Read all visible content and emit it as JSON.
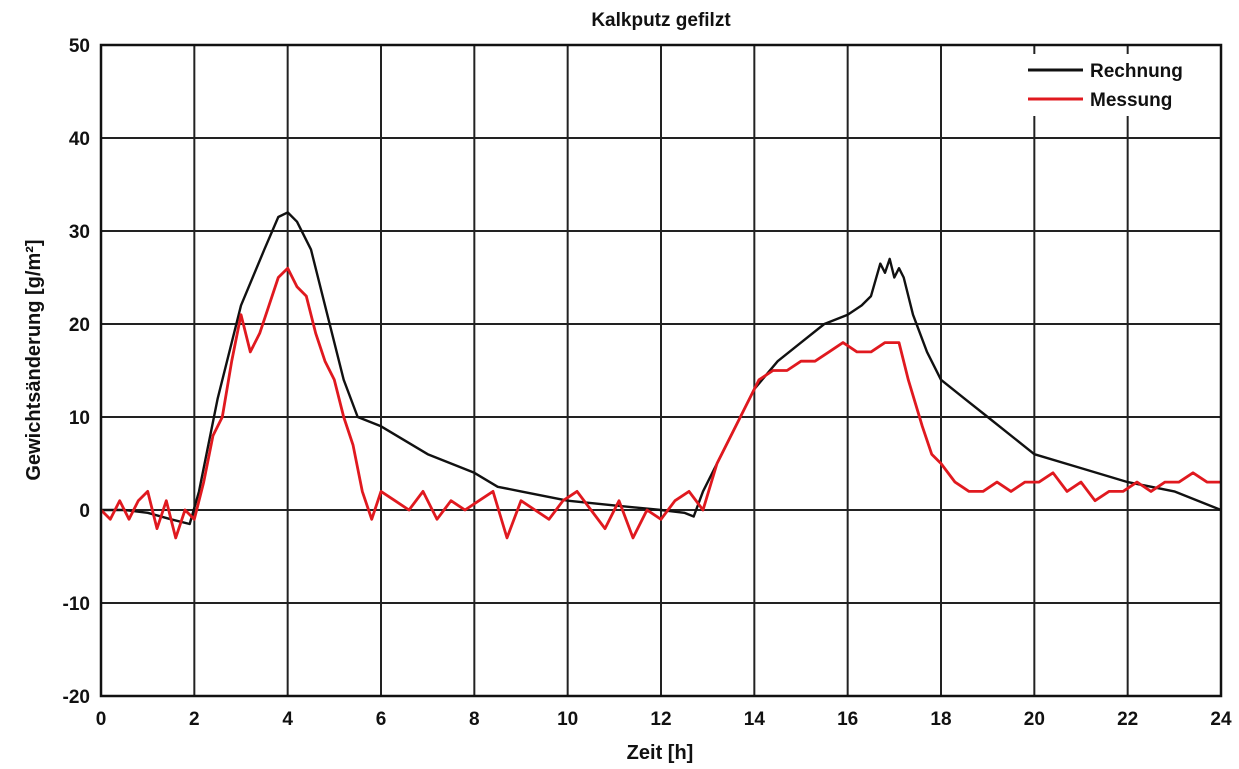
{
  "chart_data": {
    "type": "line",
    "title": "Kalkputz gefilzt",
    "xlabel": "Zeit [h]",
    "ylabel": "Gewichtsänderung [g/m²]",
    "xlim": [
      0,
      24
    ],
    "ylim": [
      -20,
      50
    ],
    "x_ticks": [
      "0",
      "2",
      "4",
      "6",
      "8",
      "10",
      "12",
      "14",
      "16",
      "18",
      "20",
      "22",
      "24"
    ],
    "y_ticks": [
      "-20",
      "-10",
      "0",
      "10",
      "20",
      "30",
      "40",
      "50"
    ],
    "grid": true,
    "legend_position": "top-right",
    "series": [
      {
        "name": "Rechnung",
        "color": "#111111",
        "x": [
          0,
          0.5,
          1,
          1.5,
          1.9,
          2.1,
          2.5,
          3,
          3.5,
          3.8,
          4,
          4.2,
          4.5,
          4.8,
          5.2,
          5.5,
          6,
          7,
          8,
          8.5,
          9,
          10,
          11,
          12,
          12.5,
          12.7,
          12.9,
          13.3,
          14,
          14.5,
          15,
          15.5,
          16,
          16.3,
          16.5,
          16.7,
          16.8,
          16.9,
          17,
          17.1,
          17.2,
          17.4,
          17.7,
          18,
          18.5,
          19,
          20,
          21,
          22,
          23,
          24
        ],
        "y": [
          0,
          0,
          -0.3,
          -1,
          -1.5,
          2,
          12,
          22,
          28,
          31.5,
          32,
          31,
          28,
          22,
          14,
          10,
          9,
          6,
          4,
          2.5,
          2,
          1,
          0.5,
          0,
          -0.3,
          -0.7,
          2,
          6,
          13,
          16,
          18,
          20,
          21,
          22,
          23,
          26.5,
          25.5,
          27,
          25,
          26,
          25,
          21,
          17,
          14,
          12,
          10,
          6,
          4.5,
          3,
          2,
          0
        ]
      },
      {
        "name": "Messung",
        "color": "#e0191f",
        "x": [
          0,
          0.2,
          0.4,
          0.6,
          0.8,
          1,
          1.2,
          1.4,
          1.6,
          1.8,
          2,
          2.2,
          2.4,
          2.6,
          2.8,
          3,
          3.2,
          3.4,
          3.6,
          3.8,
          4,
          4.2,
          4.4,
          4.6,
          4.8,
          5,
          5.2,
          5.4,
          5.6,
          5.8,
          6,
          6.3,
          6.6,
          6.9,
          7.2,
          7.5,
          7.8,
          8.1,
          8.4,
          8.7,
          9,
          9.3,
          9.6,
          9.9,
          10.2,
          10.5,
          10.8,
          11.1,
          11.4,
          11.7,
          12,
          12.3,
          12.6,
          12.9,
          13.2,
          13.5,
          13.8,
          14.1,
          14.4,
          14.7,
          15,
          15.3,
          15.6,
          15.9,
          16.2,
          16.5,
          16.8,
          17.1,
          17.3,
          17.6,
          17.8,
          18,
          18.3,
          18.6,
          18.9,
          19.2,
          19.5,
          19.8,
          20.1,
          20.4,
          20.7,
          21,
          21.3,
          21.6,
          21.9,
          22.2,
          22.5,
          22.8,
          23.1,
          23.4,
          23.7,
          24
        ],
        "y": [
          0,
          -1,
          1,
          -1,
          1,
          2,
          -2,
          1,
          -3,
          0,
          -1,
          3,
          8,
          10,
          16,
          21,
          17,
          19,
          22,
          25,
          26,
          24,
          23,
          19,
          16,
          14,
          10,
          7,
          2,
          -1,
          2,
          1,
          0,
          2,
          -1,
          1,
          0,
          1,
          2,
          -3,
          1,
          0,
          -1,
          1,
          2,
          0,
          -2,
          1,
          -3,
          0,
          -1,
          1,
          2,
          0,
          5,
          8,
          11,
          14,
          15,
          15,
          16,
          16,
          17,
          18,
          17,
          17,
          18,
          18,
          14,
          9,
          6,
          5,
          3,
          2,
          2,
          3,
          2,
          3,
          3,
          4,
          2,
          3,
          1,
          2,
          2,
          3,
          2,
          3,
          3,
          4,
          3,
          3
        ]
      }
    ]
  }
}
